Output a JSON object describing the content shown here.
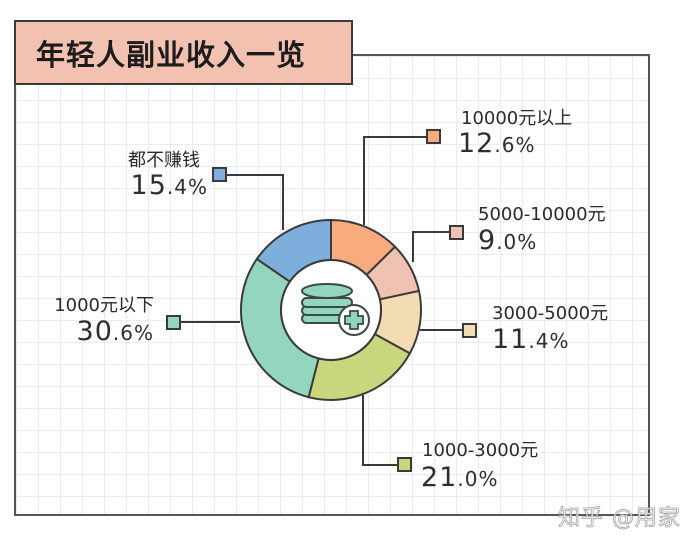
{
  "title": "年轻人副业收入一览",
  "watermark": "知乎 @用家",
  "chart_data": {
    "type": "pie",
    "variant": "donut",
    "title": "年轻人副业收入一览",
    "start_angle": "12 o'clock, clockwise",
    "categories": [
      "10000元以上",
      "5000-10000元",
      "3000-5000元",
      "1000-3000元",
      "1000元以下",
      "都不赚钱"
    ],
    "values": [
      12.6,
      9.0,
      11.4,
      21.0,
      30.6,
      15.4
    ],
    "unit": "%",
    "colors": [
      "#f7ab7f",
      "#f0c2b2",
      "#f2dcb4",
      "#c9d67e",
      "#93d6bd",
      "#7eaedb"
    ],
    "center_icon": "coin-stack-plus-icon",
    "legend": "callout labels with leader lines"
  },
  "slices": [
    {
      "label": "10000元以上",
      "int": "12",
      "dec": ".6%",
      "color": "#f7ab7f"
    },
    {
      "label": "5000-10000元",
      "int": "9",
      "dec": ".0%",
      "color": "#f0c2b2"
    },
    {
      "label": "3000-5000元",
      "int": "11",
      "dec": ".4%",
      "color": "#f2dcb4"
    },
    {
      "label": "1000-3000元",
      "int": "21",
      "dec": ".0%",
      "color": "#c9d67e"
    },
    {
      "label": "1000元以下",
      "int": "30",
      "dec": ".6%",
      "color": "#93d6bd"
    },
    {
      "label": "都不赚钱",
      "int": "15",
      "dec": ".4%",
      "color": "#7eaedb"
    }
  ]
}
